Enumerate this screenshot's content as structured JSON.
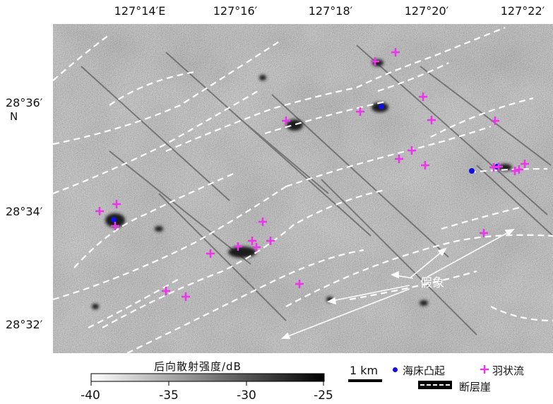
{
  "axes": {
    "longitude_ticks": [
      "127°14′E",
      "127°16′",
      "127°18′",
      "127°20′",
      "127°22′"
    ],
    "latitude_ticks": [
      "28°36′",
      "28°34′",
      "28°32′"
    ],
    "north_label": "N"
  },
  "colorbar": {
    "title": "后向散射强度/dB",
    "ticks": [
      "-40",
      "-35",
      "-30",
      "-25"
    ],
    "range": [
      -40,
      -25
    ]
  },
  "scale_bar": {
    "label": "1 km"
  },
  "legend": {
    "seamount": {
      "label": "海床凸起",
      "color": "#1010dd"
    },
    "plume": {
      "label": "羽状流",
      "color": "#e838e8"
    },
    "fault_scarp": {
      "label": "断层崖"
    }
  },
  "annotation": {
    "artifact_label": "假象"
  }
}
